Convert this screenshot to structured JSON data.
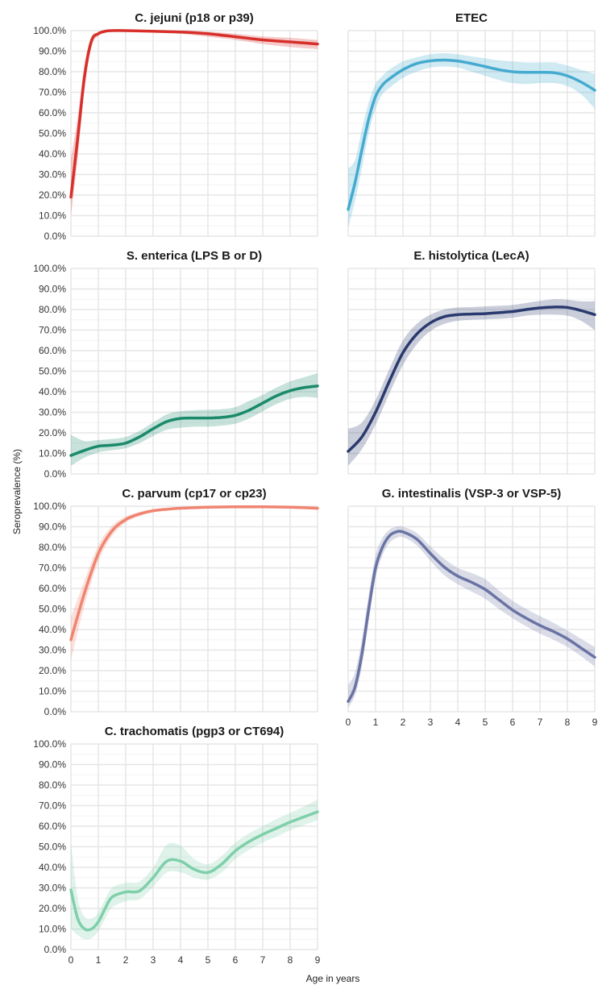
{
  "figure": {
    "ylabel": "Seroprevalence (%)",
    "xlabel": "Age in years"
  },
  "chart_data": [
    {
      "type": "line",
      "title": "C. jejuni (p18 or p39)",
      "color": "#d7302b",
      "xlim": [
        0,
        9
      ],
      "ylim": [
        0,
        1
      ],
      "y_ticks": [
        "0.0%",
        "10.0%",
        "20.0%",
        "30.0%",
        "40.0%",
        "50.0%",
        "60.0%",
        "70.0%",
        "80.0%",
        "90.0%",
        "100.0%"
      ],
      "x_ticks": [],
      "series": [
        {
          "x": [
            0,
            0.25,
            0.5,
            0.75,
            1,
            1.25,
            1.5,
            2,
            3,
            4,
            5,
            6,
            7,
            8,
            9
          ],
          "y": [
            0.19,
            0.48,
            0.78,
            0.95,
            0.985,
            0.997,
            1.0,
            1.0,
            0.997,
            0.993,
            0.985,
            0.97,
            0.955,
            0.945,
            0.935
          ],
          "lower": [
            0.1,
            0.38,
            0.72,
            0.92,
            0.975,
            0.99,
            0.995,
            0.995,
            0.99,
            0.985,
            0.97,
            0.955,
            0.935,
            0.92,
            0.91
          ],
          "upper": [
            0.38,
            0.58,
            0.84,
            0.97,
            0.99,
            1.0,
            1.0,
            1.0,
            1.0,
            1.0,
            0.995,
            0.985,
            0.972,
            0.965,
            0.955
          ]
        }
      ]
    },
    {
      "type": "line",
      "title": "ETEC",
      "color": "#45aacf",
      "xlim": [
        0,
        9
      ],
      "ylim": [
        0,
        1
      ],
      "y_ticks": [],
      "x_ticks": [],
      "series": [
        {
          "x": [
            0,
            0.25,
            0.5,
            0.75,
            1,
            1.25,
            1.5,
            2,
            2.5,
            3,
            3.5,
            4,
            4.5,
            5,
            5.5,
            6,
            6.5,
            7,
            7.5,
            8,
            8.5,
            9
          ],
          "y": [
            0.13,
            0.26,
            0.42,
            0.57,
            0.68,
            0.735,
            0.765,
            0.81,
            0.84,
            0.853,
            0.857,
            0.852,
            0.84,
            0.825,
            0.81,
            0.8,
            0.797,
            0.797,
            0.795,
            0.78,
            0.75,
            0.71
          ],
          "lower": [
            0.04,
            0.17,
            0.33,
            0.5,
            0.62,
            0.69,
            0.72,
            0.77,
            0.8,
            0.82,
            0.825,
            0.82,
            0.8,
            0.78,
            0.76,
            0.745,
            0.74,
            0.745,
            0.745,
            0.73,
            0.69,
            0.62
          ],
          "upper": [
            0.33,
            0.37,
            0.52,
            0.65,
            0.74,
            0.78,
            0.81,
            0.85,
            0.87,
            0.885,
            0.89,
            0.885,
            0.875,
            0.865,
            0.855,
            0.85,
            0.845,
            0.845,
            0.845,
            0.83,
            0.81,
            0.79
          ]
        }
      ]
    },
    {
      "type": "line",
      "title": "S. enterica (LPS B or D)",
      "color": "#1a8a6a",
      "xlim": [
        0,
        9
      ],
      "ylim": [
        0,
        1
      ],
      "y_ticks": [
        "0.0%",
        "10.0%",
        "20.0%",
        "30.0%",
        "40.0%",
        "50.0%",
        "60.0%",
        "70.0%",
        "80.0%",
        "90.0%",
        "100.0%"
      ],
      "x_ticks": [],
      "series": [
        {
          "x": [
            0,
            0.5,
            1,
            1.5,
            2,
            2.5,
            3,
            3.5,
            4,
            4.5,
            5,
            5.5,
            6,
            6.5,
            7,
            7.5,
            8,
            8.5,
            9
          ],
          "y": [
            0.09,
            0.115,
            0.135,
            0.14,
            0.15,
            0.18,
            0.22,
            0.255,
            0.27,
            0.272,
            0.272,
            0.275,
            0.285,
            0.31,
            0.345,
            0.38,
            0.405,
            0.42,
            0.428
          ],
          "lower": [
            0.04,
            0.08,
            0.105,
            0.115,
            0.125,
            0.15,
            0.185,
            0.215,
            0.225,
            0.23,
            0.23,
            0.235,
            0.245,
            0.27,
            0.305,
            0.34,
            0.365,
            0.375,
            0.37
          ],
          "upper": [
            0.19,
            0.16,
            0.165,
            0.17,
            0.18,
            0.21,
            0.25,
            0.29,
            0.305,
            0.31,
            0.312,
            0.315,
            0.325,
            0.355,
            0.385,
            0.42,
            0.45,
            0.47,
            0.49
          ]
        }
      ]
    },
    {
      "type": "line",
      "title": "E. histolytica (LecA)",
      "color": "#2a3a6e",
      "xlim": [
        0,
        9
      ],
      "ylim": [
        0,
        1
      ],
      "y_ticks": [],
      "x_ticks": [],
      "series": [
        {
          "x": [
            0,
            0.5,
            1,
            1.5,
            2,
            2.5,
            3,
            3.5,
            4,
            4.5,
            5,
            5.5,
            6,
            6.5,
            7,
            7.5,
            8,
            8.5,
            9
          ],
          "y": [
            0.11,
            0.18,
            0.3,
            0.45,
            0.59,
            0.68,
            0.735,
            0.765,
            0.775,
            0.778,
            0.78,
            0.785,
            0.79,
            0.8,
            0.808,
            0.812,
            0.81,
            0.795,
            0.775
          ],
          "lower": [
            0.04,
            0.12,
            0.24,
            0.39,
            0.53,
            0.63,
            0.695,
            0.73,
            0.745,
            0.75,
            0.752,
            0.755,
            0.76,
            0.77,
            0.775,
            0.775,
            0.77,
            0.745,
            0.7
          ],
          "upper": [
            0.22,
            0.25,
            0.36,
            0.51,
            0.65,
            0.73,
            0.775,
            0.8,
            0.81,
            0.812,
            0.815,
            0.818,
            0.822,
            0.832,
            0.842,
            0.85,
            0.848,
            0.84,
            0.84
          ]
        }
      ]
    },
    {
      "type": "line",
      "title": "C. parvum (cp17 or cp23)",
      "color": "#f08470",
      "xlim": [
        0,
        9
      ],
      "ylim": [
        0,
        1
      ],
      "y_ticks": [
        "0.0%",
        "10.0%",
        "20.0%",
        "30.0%",
        "40.0%",
        "50.0%",
        "60.0%",
        "70.0%",
        "80.0%",
        "90.0%",
        "100.0%"
      ],
      "x_ticks": [],
      "series": [
        {
          "x": [
            0,
            0.5,
            1,
            1.5,
            2,
            2.5,
            3,
            3.5,
            4,
            5,
            6,
            7,
            8,
            9
          ],
          "y": [
            0.35,
            0.58,
            0.77,
            0.88,
            0.935,
            0.962,
            0.978,
            0.985,
            0.99,
            0.995,
            0.997,
            0.997,
            0.995,
            0.99
          ],
          "lower": [
            0.25,
            0.52,
            0.73,
            0.855,
            0.92,
            0.952,
            0.97,
            0.98,
            0.985,
            0.99,
            0.992,
            0.992,
            0.99,
            0.982
          ],
          "upper": [
            0.46,
            0.64,
            0.81,
            0.905,
            0.95,
            0.972,
            0.985,
            0.99,
            0.995,
            0.999,
            1.0,
            1.0,
            0.999,
            0.997
          ]
        }
      ]
    },
    {
      "type": "line",
      "title": "G. intestinalis (VSP-3 or VSP-5)",
      "color": "#6a74a4",
      "xlim": [
        0,
        9
      ],
      "ylim": [
        0,
        1
      ],
      "y_ticks": [],
      "x_ticks": [
        "0",
        "1",
        "2",
        "3",
        "4",
        "5",
        "6",
        "7",
        "8",
        "9"
      ],
      "series": [
        {
          "x": [
            0,
            0.25,
            0.5,
            0.75,
            1,
            1.25,
            1.5,
            1.75,
            2,
            2.5,
            3,
            3.5,
            4,
            4.5,
            5,
            5.5,
            6,
            6.5,
            7,
            7.5,
            8,
            8.5,
            9
          ],
          "y": [
            0.05,
            0.12,
            0.28,
            0.5,
            0.7,
            0.8,
            0.855,
            0.875,
            0.875,
            0.84,
            0.77,
            0.705,
            0.66,
            0.63,
            0.595,
            0.545,
            0.495,
            0.455,
            0.42,
            0.39,
            0.355,
            0.31,
            0.265
          ],
          "lower": [
            0.02,
            0.08,
            0.22,
            0.44,
            0.65,
            0.76,
            0.82,
            0.845,
            0.85,
            0.81,
            0.735,
            0.665,
            0.62,
            0.585,
            0.55,
            0.5,
            0.455,
            0.415,
            0.38,
            0.35,
            0.315,
            0.27,
            0.22
          ],
          "upper": [
            0.13,
            0.19,
            0.35,
            0.57,
            0.76,
            0.845,
            0.885,
            0.9,
            0.9,
            0.87,
            0.805,
            0.745,
            0.7,
            0.675,
            0.645,
            0.59,
            0.54,
            0.5,
            0.465,
            0.432,
            0.395,
            0.355,
            0.315
          ]
        }
      ]
    },
    {
      "type": "line",
      "title": "C. trachomatis (pgp3 or CT694)",
      "color": "#7ecfaa",
      "xlim": [
        0,
        9
      ],
      "ylim": [
        0,
        1
      ],
      "y_ticks": [
        "0.0%",
        "10.0%",
        "20.0%",
        "30.0%",
        "40.0%",
        "50.0%",
        "60.0%",
        "70.0%",
        "80.0%",
        "90.0%",
        "100.0%"
      ],
      "x_ticks": [
        "0",
        "1",
        "2",
        "3",
        "4",
        "5",
        "6",
        "7",
        "8",
        "9"
      ],
      "series": [
        {
          "x": [
            0,
            0.25,
            0.5,
            0.75,
            1,
            1.25,
            1.5,
            2,
            2.5,
            3,
            3.5,
            4,
            4.5,
            5,
            5.5,
            6,
            6.5,
            7,
            7.5,
            8,
            8.5,
            9
          ],
          "y": [
            0.29,
            0.15,
            0.1,
            0.1,
            0.135,
            0.2,
            0.255,
            0.28,
            0.285,
            0.35,
            0.43,
            0.43,
            0.39,
            0.375,
            0.415,
            0.48,
            0.525,
            0.56,
            0.59,
            0.62,
            0.645,
            0.67
          ],
          "lower": [
            0.1,
            0.07,
            0.05,
            0.055,
            0.09,
            0.15,
            0.205,
            0.235,
            0.245,
            0.305,
            0.375,
            0.375,
            0.35,
            0.34,
            0.375,
            0.44,
            0.485,
            0.52,
            0.55,
            0.58,
            0.605,
            0.63
          ],
          "upper": [
            0.52,
            0.25,
            0.16,
            0.15,
            0.18,
            0.245,
            0.3,
            0.325,
            0.33,
            0.4,
            0.51,
            0.505,
            0.44,
            0.415,
            0.455,
            0.52,
            0.565,
            0.6,
            0.635,
            0.665,
            0.695,
            0.73
          ]
        }
      ]
    }
  ]
}
